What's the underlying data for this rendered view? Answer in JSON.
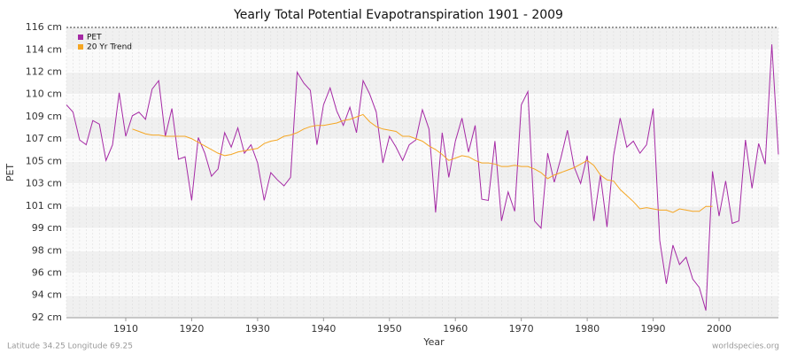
{
  "chart_data": {
    "type": "line",
    "title": "Yearly Total Potential Evapotranspiration 1901 - 2009",
    "x_label": "Year",
    "y_label": "PET",
    "footer_left": "Latitude 34.25 Longitude 69.25",
    "footer_right": "worldspecies.org",
    "x": [
      1901,
      1902,
      1903,
      1904,
      1905,
      1906,
      1907,
      1908,
      1909,
      1910,
      1911,
      1912,
      1913,
      1914,
      1915,
      1916,
      1917,
      1918,
      1919,
      1920,
      1921,
      1922,
      1923,
      1924,
      1925,
      1926,
      1927,
      1928,
      1929,
      1930,
      1931,
      1932,
      1933,
      1934,
      1935,
      1936,
      1937,
      1938,
      1939,
      1940,
      1941,
      1942,
      1943,
      1944,
      1945,
      1946,
      1947,
      1948,
      1949,
      1950,
      1951,
      1952,
      1953,
      1954,
      1955,
      1956,
      1957,
      1958,
      1959,
      1960,
      1961,
      1962,
      1963,
      1964,
      1965,
      1966,
      1967,
      1968,
      1969,
      1970,
      1971,
      1972,
      1973,
      1974,
      1975,
      1976,
      1977,
      1978,
      1979,
      1980,
      1981,
      1982,
      1983,
      1984,
      1985,
      1986,
      1987,
      1988,
      1989,
      1990,
      1991,
      1992,
      1993,
      1994,
      1995,
      1996,
      1997,
      1998,
      1999,
      2000,
      2001,
      2002,
      2003,
      2004,
      2005,
      2006,
      2007,
      2008,
      2009
    ],
    "series": [
      {
        "name": "PET",
        "color": "#a52aa5",
        "values": [
          109.6,
          109.0,
          106.7,
          106.3,
          108.3,
          108.0,
          105.0,
          106.3,
          110.6,
          107.0,
          108.7,
          109.0,
          108.4,
          110.9,
          111.6,
          107.0,
          109.3,
          105.1,
          105.3,
          101.7,
          106.9,
          105.6,
          103.7,
          104.3,
          107.3,
          106.1,
          107.7,
          105.6,
          106.3,
          104.8,
          101.7,
          104.0,
          103.4,
          102.9,
          103.6,
          112.3,
          111.4,
          110.8,
          106.3,
          109.6,
          111.0,
          109.1,
          107.9,
          109.4,
          107.3,
          111.6,
          110.5,
          109.0,
          104.8,
          107.0,
          106.1,
          105.0,
          106.3,
          106.7,
          109.2,
          107.6,
          100.7,
          107.3,
          103.6,
          106.6,
          108.5,
          105.7,
          107.9,
          101.8,
          101.7,
          106.6,
          100.0,
          102.4,
          100.8,
          109.6,
          110.7,
          100.0,
          99.4,
          105.6,
          103.2,
          105.2,
          107.5,
          104.5,
          103.1,
          105.4,
          100.0,
          103.8,
          99.5,
          105.4,
          108.5,
          106.1,
          106.6,
          105.6,
          106.3,
          109.3,
          98.4,
          94.8,
          98.0,
          96.4,
          97.0,
          95.2,
          94.5,
          92.6,
          104.1,
          100.4,
          103.3,
          99.8,
          100.0,
          106.7,
          102.7,
          106.4,
          104.7,
          114.6,
          105.5
        ]
      },
      {
        "name": "20 Yr Trend",
        "color": "#f5a623",
        "values": [
          null,
          null,
          null,
          null,
          null,
          null,
          null,
          null,
          null,
          null,
          107.6,
          107.4,
          107.2,
          107.1,
          107.1,
          107.0,
          107.0,
          107.0,
          107.0,
          106.8,
          106.5,
          106.2,
          105.9,
          105.6,
          105.4,
          105.5,
          105.7,
          105.8,
          105.9,
          106.0,
          106.4,
          106.6,
          106.7,
          107.0,
          107.1,
          107.3,
          107.6,
          107.8,
          107.9,
          107.9,
          108.0,
          108.1,
          108.3,
          108.4,
          108.6,
          108.8,
          108.2,
          107.8,
          107.6,
          107.5,
          107.4,
          107.0,
          107.0,
          106.8,
          106.6,
          106.2,
          105.9,
          105.5,
          105.0,
          105.2,
          105.4,
          105.3,
          105.0,
          104.8,
          104.8,
          104.7,
          104.5,
          104.5,
          104.6,
          104.5,
          104.5,
          104.3,
          104.0,
          103.5,
          103.8,
          104.0,
          104.2,
          104.4,
          104.7,
          105.0,
          104.6,
          103.8,
          103.4,
          103.3,
          102.6,
          102.1,
          101.6,
          101.0,
          101.1,
          101.0,
          100.9,
          100.9,
          100.7,
          101.0,
          100.9,
          100.8,
          100.8,
          101.2,
          101.2,
          null,
          null,
          null,
          null,
          null,
          null,
          null,
          null,
          null,
          null
        ]
      }
    ],
    "xlim": [
      1901,
      2009
    ],
    "xticks": [
      1910,
      1920,
      1930,
      1940,
      1950,
      1960,
      1970,
      1980,
      1990,
      2000
    ],
    "ylim": [
      92,
      116
    ],
    "yticks": [
      {
        "value": 92,
        "label": "92 cm"
      },
      {
        "value": 93.85,
        "label": "94 cm"
      },
      {
        "value": 95.69,
        "label": "96 cm"
      },
      {
        "value": 97.54,
        "label": "98 cm"
      },
      {
        "value": 99.38,
        "label": "99 cm"
      },
      {
        "value": 101.23,
        "label": "101 cm"
      },
      {
        "value": 103.08,
        "label": "103 cm"
      },
      {
        "value": 104.92,
        "label": "105 cm"
      },
      {
        "value": 106.77,
        "label": "107 cm"
      },
      {
        "value": 108.62,
        "label": "109 cm"
      },
      {
        "value": 110.46,
        "label": "110 cm"
      },
      {
        "value": 112.31,
        "label": "112 cm"
      },
      {
        "value": 114.15,
        "label": "114 cm"
      },
      {
        "value": 116,
        "label": "116 cm"
      }
    ],
    "grid": true,
    "legend": "top-left"
  }
}
